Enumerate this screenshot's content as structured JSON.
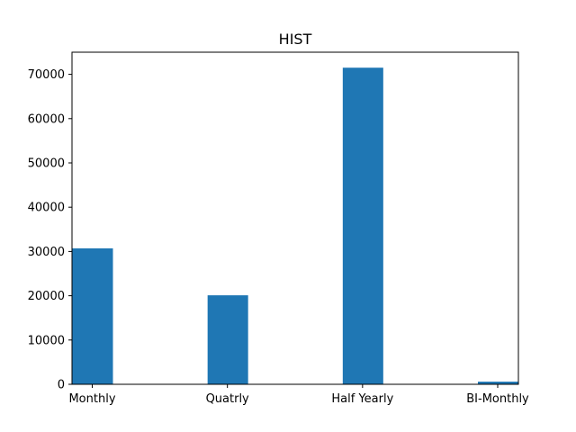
{
  "chart_data": {
    "type": "bar",
    "title": "HIST",
    "xlabel": "",
    "ylabel": "",
    "categories": [
      "Monthly",
      "Quatrly",
      "Half Yearly",
      "BI-Monthly"
    ],
    "values": [
      30700,
      20100,
      71500,
      600
    ],
    "ylim": [
      0,
      75000
    ],
    "yticks": [
      0,
      10000,
      20000,
      30000,
      40000,
      50000,
      60000,
      70000
    ],
    "ytick_labels": [
      "0",
      "10000",
      "20000",
      "30000",
      "40000",
      "50000",
      "60000",
      "70000"
    ],
    "grid": false,
    "legend": "none",
    "bar_color": "#1f77b4"
  }
}
